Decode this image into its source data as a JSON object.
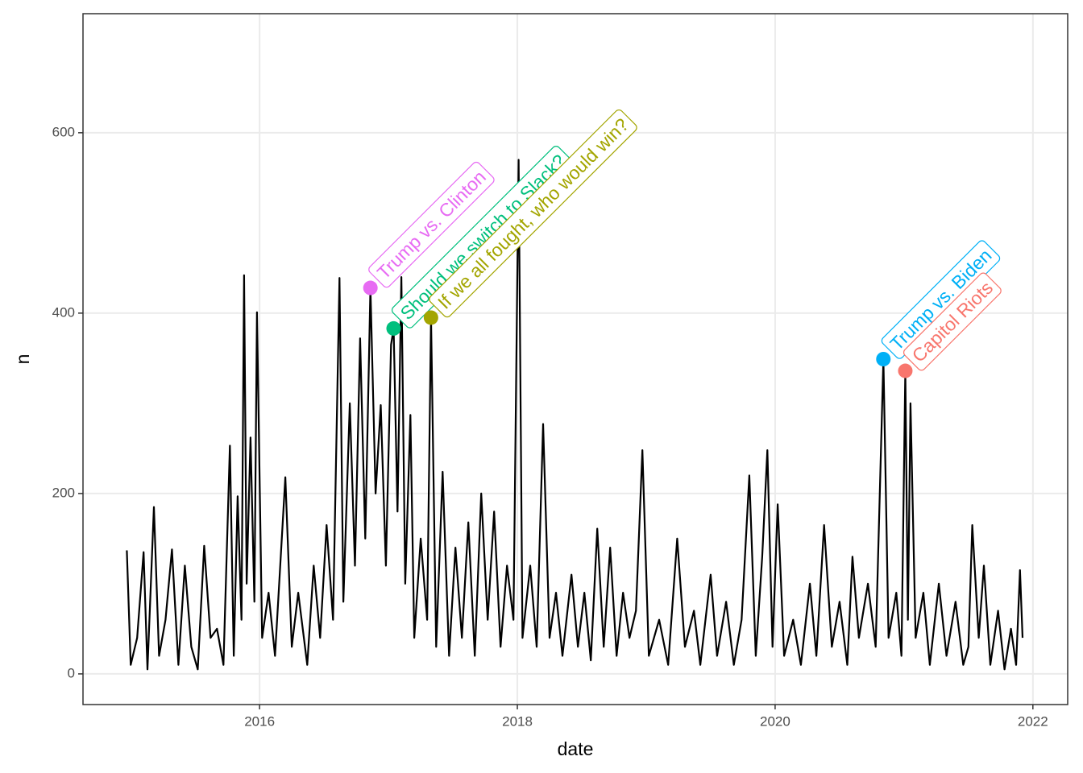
{
  "chart_data": {
    "type": "line",
    "x_label": "date",
    "y_label": "n",
    "xlim": [
      2014.63,
      2022.27
    ],
    "xticks": [
      2016,
      2018,
      2020,
      2022
    ],
    "ylim": [
      -34,
      732
    ],
    "yticks": [
      0,
      200,
      400,
      600
    ],
    "grid": true,
    "series": [
      {
        "color": "#000000",
        "x": [
          2014.97,
          2015.0,
          2015.05,
          2015.1,
          2015.13,
          2015.18,
          2015.22,
          2015.27,
          2015.32,
          2015.37,
          2015.42,
          2015.47,
          2015.52,
          2015.57,
          2015.62,
          2015.67,
          2015.72,
          2015.77,
          2015.8,
          2015.83,
          2015.86,
          2015.88,
          2015.9,
          2015.93,
          2015.96,
          2015.98,
          2016.02,
          2016.07,
          2016.12,
          2016.2,
          2016.25,
          2016.3,
          2016.37,
          2016.42,
          2016.47,
          2016.52,
          2016.57,
          2016.62,
          2016.65,
          2016.7,
          2016.74,
          2016.78,
          2016.82,
          2016.86,
          2016.9,
          2016.94,
          2016.98,
          2017.02,
          2017.04,
          2017.07,
          2017.1,
          2017.13,
          2017.17,
          2017.2,
          2017.25,
          2017.3,
          2017.33,
          2017.37,
          2017.42,
          2017.47,
          2017.52,
          2017.57,
          2017.62,
          2017.67,
          2017.72,
          2017.77,
          2017.82,
          2017.87,
          2017.92,
          2017.97,
          2018.01,
          2018.04,
          2018.1,
          2018.15,
          2018.2,
          2018.25,
          2018.3,
          2018.35,
          2018.42,
          2018.47,
          2018.52,
          2018.57,
          2018.62,
          2018.67,
          2018.72,
          2018.77,
          2018.82,
          2018.87,
          2018.92,
          2018.97,
          2019.02,
          2019.1,
          2019.17,
          2019.24,
          2019.3,
          2019.37,
          2019.42,
          2019.5,
          2019.55,
          2019.62,
          2019.68,
          2019.74,
          2019.8,
          2019.85,
          2019.9,
          2019.94,
          2019.98,
          2020.02,
          2020.07,
          2020.14,
          2020.2,
          2020.27,
          2020.32,
          2020.38,
          2020.44,
          2020.5,
          2020.56,
          2020.6,
          2020.65,
          2020.72,
          2020.78,
          2020.84,
          2020.88,
          2020.94,
          2020.98,
          2021.01,
          2021.03,
          2021.05,
          2021.09,
          2021.15,
          2021.2,
          2021.27,
          2021.33,
          2021.4,
          2021.46,
          2021.5,
          2021.53,
          2021.58,
          2021.62,
          2021.67,
          2021.73,
          2021.78,
          2021.83,
          2021.87,
          2021.9,
          2021.92
        ],
        "values": [
          137,
          10,
          40,
          135,
          5,
          185,
          20,
          60,
          138,
          10,
          120,
          30,
          5,
          142,
          40,
          50,
          10,
          253,
          20,
          197,
          60,
          442,
          100,
          262,
          80,
          401,
          40,
          90,
          20,
          218,
          30,
          90,
          10,
          120,
          40,
          165,
          60,
          439,
          80,
          300,
          120,
          372,
          150,
          428,
          200,
          298,
          120,
          365,
          383,
          180,
          440,
          100,
          287,
          40,
          150,
          60,
          395,
          30,
          224,
          20,
          140,
          40,
          168,
          20,
          200,
          60,
          180,
          30,
          120,
          60,
          570,
          40,
          120,
          30,
          277,
          40,
          90,
          20,
          110,
          30,
          90,
          15,
          161,
          30,
          140,
          20,
          90,
          40,
          70,
          248,
          20,
          60,
          10,
          150,
          30,
          70,
          10,
          110,
          20,
          80,
          10,
          60,
          220,
          20,
          130,
          248,
          30,
          188,
          20,
          60,
          10,
          100,
          20,
          165,
          30,
          80,
          10,
          130,
          40,
          100,
          30,
          349,
          40,
          90,
          20,
          336,
          60,
          300,
          40,
          90,
          10,
          100,
          20,
          80,
          10,
          30,
          165,
          40,
          120,
          10,
          70,
          5,
          50,
          10,
          115,
          40
        ]
      }
    ],
    "annotations": [
      {
        "label": "Trump vs. Clinton",
        "x": 2016.86,
        "y": 428,
        "color": "#E76BF3"
      },
      {
        "label": "Should we switch to Slack?",
        "x": 2017.04,
        "y": 383,
        "color": "#00BF7D"
      },
      {
        "label": "If we all fought, who would win?",
        "x": 2017.33,
        "y": 395,
        "color": "#A3A500"
      },
      {
        "label": "Trump vs. Biden",
        "x": 2020.84,
        "y": 349,
        "color": "#00B0F6"
      },
      {
        "label": "Capitol Riots",
        "x": 2021.01,
        "y": 336,
        "color": "#F8766D"
      }
    ]
  }
}
